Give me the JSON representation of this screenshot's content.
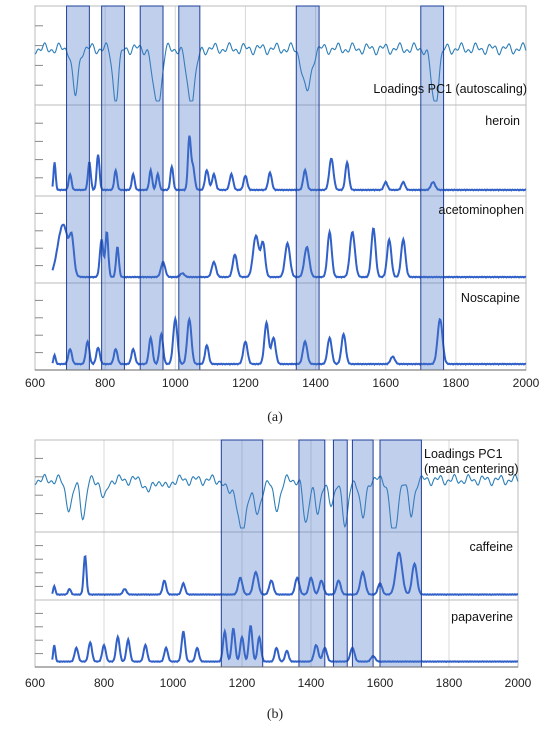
{
  "colors": {
    "highlight_fill": "#4a78c8",
    "highlight_stroke": "#1f3f99",
    "loadings_line": "#2d7fb8",
    "spectrum_line": "#3060c8",
    "grid": "#d8d8d8"
  },
  "chart_data": [
    {
      "type": "line",
      "caption": "(a)",
      "xlim": [
        600,
        2000
      ],
      "x_ticks": [
        "600",
        "800",
        "1000",
        "1200",
        "1400",
        "1600",
        "1800",
        "2000"
      ],
      "grid": true,
      "highlight_bands": [
        [
          690,
          755
        ],
        [
          790,
          855
        ],
        [
          900,
          965
        ],
        [
          1010,
          1070
        ],
        [
          1345,
          1410
        ],
        [
          1700,
          1765
        ]
      ],
      "panels": [
        {
          "label": "Loadings PC1 (autoscaling)",
          "style": "loadings",
          "peaks": [
            [
              715,
              0.55,
              8
            ],
            [
              830,
              0.6,
              8
            ],
            [
              940,
              0.45,
              8
            ],
            [
              955,
              0.5,
              8
            ],
            [
              1045,
              0.6,
              12
            ],
            [
              1375,
              0.5,
              12
            ],
            [
              1740,
              0.65,
              10
            ]
          ]
        },
        {
          "label": "heroin",
          "style": "spectrum",
          "peaks": [
            [
              656,
              0.35,
              3
            ],
            [
              700,
              0.2,
              4
            ],
            [
              755,
              0.35,
              4
            ],
            [
              780,
              0.45,
              4
            ],
            [
              830,
              0.25,
              4
            ],
            [
              880,
              0.2,
              4
            ],
            [
              930,
              0.25,
              4
            ],
            [
              950,
              0.2,
              4
            ],
            [
              990,
              0.3,
              4
            ],
            [
              1040,
              0.65,
              4
            ],
            [
              1050,
              0.3,
              5
            ],
            [
              1090,
              0.25,
              5
            ],
            [
              1110,
              0.2,
              5
            ],
            [
              1160,
              0.2,
              5
            ],
            [
              1200,
              0.18,
              5
            ],
            [
              1270,
              0.22,
              5
            ],
            [
              1370,
              0.25,
              5
            ],
            [
              1445,
              0.4,
              6
            ],
            [
              1490,
              0.35,
              5
            ],
            [
              1600,
              0.1,
              5
            ],
            [
              1650,
              0.1,
              5
            ],
            [
              1735,
              0.1,
              6
            ]
          ]
        },
        {
          "label": "acetominophen",
          "style": "spectrum",
          "peaks": [
            [
              680,
              0.7,
              15
            ],
            [
              705,
              0.4,
              6
            ],
            [
              790,
              0.5,
              5
            ],
            [
              805,
              0.6,
              4
            ],
            [
              835,
              0.4,
              4
            ],
            [
              965,
              0.2,
              6
            ],
            [
              1020,
              0.05,
              6
            ],
            [
              1110,
              0.2,
              6
            ],
            [
              1170,
              0.3,
              6
            ],
            [
              1230,
              0.55,
              8
            ],
            [
              1250,
              0.45,
              6
            ],
            [
              1320,
              0.45,
              7
            ],
            [
              1375,
              0.4,
              7
            ],
            [
              1440,
              0.6,
              6
            ],
            [
              1505,
              0.6,
              7
            ],
            [
              1565,
              0.65,
              6
            ],
            [
              1610,
              0.5,
              6
            ],
            [
              1650,
              0.5,
              6
            ]
          ]
        },
        {
          "label": "Noscapine",
          "style": "spectrum",
          "peaks": [
            [
              656,
              0.12,
              3
            ],
            [
              700,
              0.2,
              5
            ],
            [
              750,
              0.3,
              5
            ],
            [
              780,
              0.22,
              5
            ],
            [
              830,
              0.2,
              5
            ],
            [
              880,
              0.2,
              5
            ],
            [
              930,
              0.35,
              5
            ],
            [
              960,
              0.4,
              5
            ],
            [
              1000,
              0.6,
              6
            ],
            [
              1040,
              0.6,
              6
            ],
            [
              1090,
              0.25,
              5
            ],
            [
              1200,
              0.3,
              6
            ],
            [
              1260,
              0.55,
              6
            ],
            [
              1280,
              0.35,
              6
            ],
            [
              1370,
              0.3,
              6
            ],
            [
              1440,
              0.35,
              6
            ],
            [
              1480,
              0.4,
              6
            ],
            [
              1620,
              0.1,
              6
            ],
            [
              1755,
              0.6,
              7
            ]
          ]
        }
      ]
    },
    {
      "type": "line",
      "caption": "(b)",
      "xlim": [
        600,
        2000
      ],
      "x_ticks": [
        "600",
        "800",
        "1000",
        "1200",
        "1400",
        "1600",
        "1800",
        "2000"
      ],
      "grid": true,
      "highlight_bands": [
        [
          1140,
          1260
        ],
        [
          1365,
          1440
        ],
        [
          1465,
          1505
        ],
        [
          1520,
          1580
        ],
        [
          1600,
          1720
        ]
      ],
      "panels": [
        {
          "label": "Loadings PC1",
          "label2": "(mean centering)",
          "style": "loadings",
          "peaks": [
            [
              700,
              0.35,
              10
            ],
            [
              740,
              0.45,
              8
            ],
            [
              800,
              0.25,
              8
            ],
            [
              930,
              0.15,
              10
            ],
            [
              980,
              0.1,
              10
            ],
            [
              1160,
              0.15,
              10
            ],
            [
              1200,
              0.7,
              12
            ],
            [
              1245,
              0.45,
              10
            ],
            [
              1300,
              0.35,
              10
            ],
            [
              1385,
              0.55,
              8
            ],
            [
              1420,
              0.45,
              8
            ],
            [
              1460,
              0.35,
              8
            ],
            [
              1500,
              0.6,
              8
            ],
            [
              1550,
              0.5,
              8
            ],
            [
              1640,
              0.75,
              10
            ],
            [
              1690,
              0.45,
              8
            ]
          ]
        },
        {
          "label": "caffeine",
          "style": "spectrum",
          "peaks": [
            [
              656,
              0.15,
              3
            ],
            [
              700,
              0.1,
              4
            ],
            [
              745,
              0.7,
              4
            ],
            [
              860,
              0.1,
              5
            ],
            [
              975,
              0.25,
              5
            ],
            [
              1030,
              0.2,
              5
            ],
            [
              1195,
              0.3,
              6
            ],
            [
              1240,
              0.4,
              7
            ],
            [
              1285,
              0.25,
              6
            ],
            [
              1360,
              0.3,
              6
            ],
            [
              1400,
              0.3,
              6
            ],
            [
              1430,
              0.25,
              6
            ],
            [
              1480,
              0.25,
              6
            ],
            [
              1550,
              0.4,
              7
            ],
            [
              1600,
              0.2,
              6
            ],
            [
              1655,
              0.75,
              9
            ],
            [
              1700,
              0.55,
              7
            ]
          ]
        },
        {
          "label": "papaverine",
          "style": "spectrum",
          "peaks": [
            [
              656,
              0.3,
              3
            ],
            [
              720,
              0.25,
              5
            ],
            [
              760,
              0.35,
              5
            ],
            [
              800,
              0.3,
              5
            ],
            [
              840,
              0.45,
              5
            ],
            [
              870,
              0.4,
              5
            ],
            [
              920,
              0.3,
              5
            ],
            [
              980,
              0.25,
              5
            ],
            [
              1030,
              0.55,
              5
            ],
            [
              1070,
              0.25,
              5
            ],
            [
              1150,
              0.55,
              5
            ],
            [
              1175,
              0.6,
              5
            ],
            [
              1200,
              0.45,
              5
            ],
            [
              1225,
              0.65,
              5
            ],
            [
              1250,
              0.45,
              5
            ],
            [
              1300,
              0.25,
              5
            ],
            [
              1330,
              0.2,
              5
            ],
            [
              1415,
              0.3,
              6
            ],
            [
              1440,
              0.25,
              6
            ],
            [
              1520,
              0.25,
              6
            ],
            [
              1580,
              0.1,
              6
            ]
          ]
        }
      ]
    }
  ]
}
